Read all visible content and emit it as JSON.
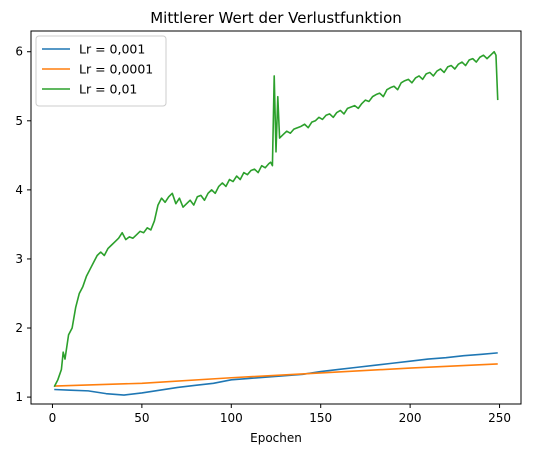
{
  "chart_data": {
    "type": "line",
    "title": "Mittlerer Wert der Verlustfunktion",
    "xlabel": "Epochen",
    "ylabel": "",
    "xlim": [
      -12,
      262
    ],
    "ylim": [
      0.9,
      6.3
    ],
    "xticks": [
      0,
      50,
      100,
      150,
      200,
      250
    ],
    "yticks": [
      1,
      2,
      3,
      4,
      5,
      6
    ],
    "grid": false,
    "legend_position": "top-left",
    "series": [
      {
        "name": "Lr = 0,001",
        "color": "#1f77b4",
        "points": [
          [
            1,
            1.11
          ],
          [
            10,
            1.1
          ],
          [
            20,
            1.09
          ],
          [
            30,
            1.05
          ],
          [
            40,
            1.03
          ],
          [
            50,
            1.06
          ],
          [
            60,
            1.1
          ],
          [
            70,
            1.14
          ],
          [
            80,
            1.17
          ],
          [
            90,
            1.2
          ],
          [
            100,
            1.25
          ],
          [
            110,
            1.27
          ],
          [
            120,
            1.29
          ],
          [
            130,
            1.31
          ],
          [
            140,
            1.33
          ],
          [
            150,
            1.37
          ],
          [
            160,
            1.4
          ],
          [
            170,
            1.43
          ],
          [
            180,
            1.46
          ],
          [
            190,
            1.49
          ],
          [
            200,
            1.52
          ],
          [
            210,
            1.55
          ],
          [
            220,
            1.57
          ],
          [
            230,
            1.6
          ],
          [
            240,
            1.62
          ],
          [
            249,
            1.64
          ]
        ]
      },
      {
        "name": "Lr = 0,0001",
        "color": "#ff7f0e",
        "points": [
          [
            1,
            1.16
          ],
          [
            50,
            1.2
          ],
          [
            100,
            1.28
          ],
          [
            150,
            1.35
          ],
          [
            200,
            1.42
          ],
          [
            249,
            1.48
          ]
        ]
      },
      {
        "name": "Lr = 0,01",
        "color": "#2ca02c",
        "points": [
          [
            1,
            1.15
          ],
          [
            3,
            1.25
          ],
          [
            5,
            1.4
          ],
          [
            6,
            1.65
          ],
          [
            7,
            1.55
          ],
          [
            9,
            1.9
          ],
          [
            11,
            2.0
          ],
          [
            13,
            2.3
          ],
          [
            15,
            2.5
          ],
          [
            17,
            2.6
          ],
          [
            19,
            2.75
          ],
          [
            21,
            2.85
          ],
          [
            23,
            2.95
          ],
          [
            25,
            3.05
          ],
          [
            27,
            3.1
          ],
          [
            29,
            3.05
          ],
          [
            31,
            3.15
          ],
          [
            33,
            3.2
          ],
          [
            35,
            3.25
          ],
          [
            37,
            3.3
          ],
          [
            39,
            3.38
          ],
          [
            41,
            3.28
          ],
          [
            43,
            3.32
          ],
          [
            45,
            3.3
          ],
          [
            47,
            3.35
          ],
          [
            49,
            3.4
          ],
          [
            51,
            3.38
          ],
          [
            53,
            3.45
          ],
          [
            55,
            3.42
          ],
          [
            57,
            3.55
          ],
          [
            59,
            3.78
          ],
          [
            61,
            3.88
          ],
          [
            63,
            3.82
          ],
          [
            65,
            3.9
          ],
          [
            67,
            3.95
          ],
          [
            69,
            3.8
          ],
          [
            71,
            3.88
          ],
          [
            73,
            3.75
          ],
          [
            75,
            3.8
          ],
          [
            77,
            3.85
          ],
          [
            79,
            3.78
          ],
          [
            81,
            3.9
          ],
          [
            83,
            3.92
          ],
          [
            85,
            3.85
          ],
          [
            87,
            3.95
          ],
          [
            89,
            4.0
          ],
          [
            91,
            3.95
          ],
          [
            93,
            4.05
          ],
          [
            95,
            4.1
          ],
          [
            97,
            4.05
          ],
          [
            99,
            4.15
          ],
          [
            101,
            4.12
          ],
          [
            103,
            4.2
          ],
          [
            105,
            4.15
          ],
          [
            107,
            4.25
          ],
          [
            109,
            4.22
          ],
          [
            111,
            4.28
          ],
          [
            113,
            4.3
          ],
          [
            115,
            4.25
          ],
          [
            117,
            4.35
          ],
          [
            119,
            4.32
          ],
          [
            121,
            4.38
          ],
          [
            122,
            4.4
          ],
          [
            123,
            4.35
          ],
          [
            124,
            5.65
          ],
          [
            125,
            4.55
          ],
          [
            126,
            5.35
          ],
          [
            127,
            4.75
          ],
          [
            129,
            4.8
          ],
          [
            131,
            4.85
          ],
          [
            133,
            4.82
          ],
          [
            135,
            4.88
          ],
          [
            137,
            4.9
          ],
          [
            139,
            4.92
          ],
          [
            141,
            4.95
          ],
          [
            143,
            4.9
          ],
          [
            145,
            4.98
          ],
          [
            147,
            5.0
          ],
          [
            149,
            5.05
          ],
          [
            151,
            5.02
          ],
          [
            153,
            5.08
          ],
          [
            155,
            5.1
          ],
          [
            157,
            5.05
          ],
          [
            159,
            5.12
          ],
          [
            161,
            5.15
          ],
          [
            163,
            5.1
          ],
          [
            165,
            5.18
          ],
          [
            167,
            5.2
          ],
          [
            169,
            5.22
          ],
          [
            171,
            5.18
          ],
          [
            173,
            5.25
          ],
          [
            175,
            5.3
          ],
          [
            177,
            5.28
          ],
          [
            179,
            5.35
          ],
          [
            181,
            5.38
          ],
          [
            183,
            5.4
          ],
          [
            185,
            5.35
          ],
          [
            187,
            5.45
          ],
          [
            189,
            5.48
          ],
          [
            191,
            5.5
          ],
          [
            193,
            5.45
          ],
          [
            195,
            5.55
          ],
          [
            197,
            5.58
          ],
          [
            199,
            5.6
          ],
          [
            201,
            5.55
          ],
          [
            203,
            5.62
          ],
          [
            205,
            5.65
          ],
          [
            207,
            5.6
          ],
          [
            209,
            5.68
          ],
          [
            211,
            5.7
          ],
          [
            213,
            5.65
          ],
          [
            215,
            5.72
          ],
          [
            217,
            5.75
          ],
          [
            219,
            5.7
          ],
          [
            221,
            5.78
          ],
          [
            223,
            5.8
          ],
          [
            225,
            5.75
          ],
          [
            227,
            5.82
          ],
          [
            229,
            5.85
          ],
          [
            231,
            5.8
          ],
          [
            233,
            5.88
          ],
          [
            235,
            5.9
          ],
          [
            237,
            5.85
          ],
          [
            239,
            5.92
          ],
          [
            241,
            5.95
          ],
          [
            243,
            5.9
          ],
          [
            245,
            5.95
          ],
          [
            247,
            6.0
          ],
          [
            248,
            5.95
          ],
          [
            249,
            5.3
          ]
        ]
      }
    ]
  }
}
